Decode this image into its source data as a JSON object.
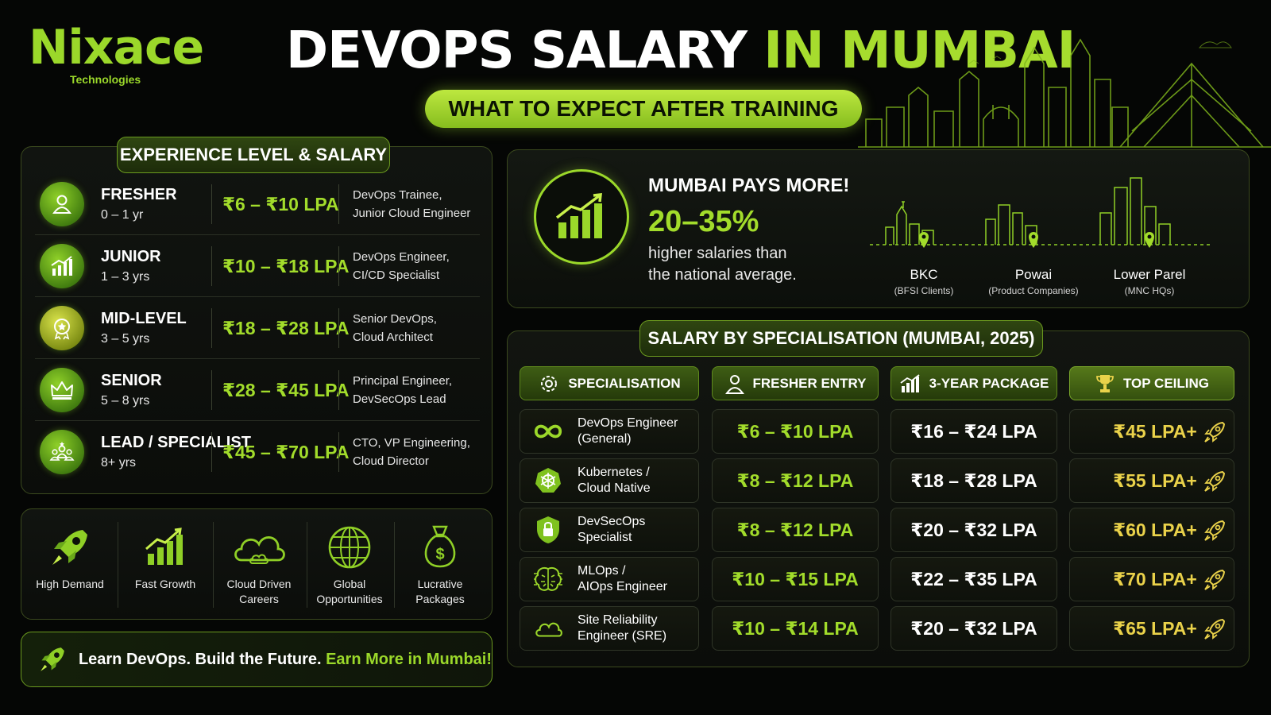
{
  "brand": {
    "name": "Nixace",
    "sub": "Technologies"
  },
  "title": {
    "part1": "DEVOPS SALARY",
    "part2": "IN MUMBAI",
    "subtitle": "WHAT TO EXPECT AFTER TRAINING"
  },
  "experience": {
    "heading": "EXPERIENCE LEVEL & SALARY",
    "rows": [
      {
        "level": "FRESHER",
        "years": "0 – 1 yr",
        "salary": "₹6 – ₹10 LPA",
        "role1": "DevOps Trainee,",
        "role2": "Junior Cloud Engineer",
        "icon": "user-icon"
      },
      {
        "level": "JUNIOR",
        "years": "1 – 3 yrs",
        "salary": "₹10 – ₹18 LPA",
        "role1": "DevOps Engineer,",
        "role2": "CI/CD Specialist",
        "icon": "growth-chart-icon"
      },
      {
        "level": "MID-LEVEL",
        "years": "3 – 5 yrs",
        "salary": "₹18 – ₹28 LPA",
        "role1": "Senior DevOps,",
        "role2": "Cloud Architect",
        "icon": "badge-icon"
      },
      {
        "level": "SENIOR",
        "years": "5 – 8 yrs",
        "salary": "₹28 – ₹45 LPA",
        "role1": "Principal Engineer,",
        "role2": "DevSecOps Lead",
        "icon": "crown-icon"
      },
      {
        "level": "LEAD / SPECIALIST",
        "years": "8+ yrs",
        "salary": "₹45 – ₹70 LPA",
        "role1": "CTO, VP Engineering,",
        "role2": "Cloud Director",
        "icon": "team-icon"
      }
    ]
  },
  "benefits": [
    {
      "line1": "High Demand",
      "line2": "",
      "icon": "rocket-icon"
    },
    {
      "line1": "Fast Growth",
      "line2": "",
      "icon": "growth-chart-icon"
    },
    {
      "line1": "Cloud Driven",
      "line2": "Careers",
      "icon": "cloud-icon"
    },
    {
      "line1": "Global",
      "line2": "Opportunities",
      "icon": "globe-icon"
    },
    {
      "line1": "Lucrative",
      "line2": "Packages",
      "icon": "money-bag-icon"
    }
  ],
  "footer": {
    "part1": "Learn DevOps. Build the Future. ",
    "part2": "Earn More in Mumbai!"
  },
  "mumbai": {
    "heading": "MUMBAI PAYS MORE!",
    "percent": "20–35%",
    "desc1": "higher salaries than",
    "desc2": "the national average.",
    "locations": [
      {
        "name": "BKC",
        "sub": "(BFSI Clients)"
      },
      {
        "name": "Powai",
        "sub": "(Product Companies)"
      },
      {
        "name": "Lower Parel",
        "sub": "(MNC HQs)"
      }
    ]
  },
  "specialisation": {
    "heading": "SALARY BY SPECIALISATION (MUMBAI, 2025)",
    "columns": [
      "SPECIALISATION",
      "FRESHER ENTRY",
      "3-YEAR PACKAGE",
      "TOP CEILING"
    ],
    "rows": [
      {
        "name1": "DevOps Engineer",
        "name2": "(General)",
        "fresher": "₹6 – ₹10 LPA",
        "three": "₹16 – ₹24 LPA",
        "top": "₹45 LPA+",
        "icon": "infinity-icon"
      },
      {
        "name1": "Kubernetes /",
        "name2": "Cloud Native",
        "fresher": "₹8 – ₹12 LPA",
        "three": "₹18 – ₹28 LPA",
        "top": "₹55 LPA+",
        "icon": "helm-wheel-icon"
      },
      {
        "name1": "DevSecOps",
        "name2": "Specialist",
        "fresher": "₹8 – ₹12 LPA",
        "three": "₹20 – ₹32 LPA",
        "top": "₹60 LPA+",
        "icon": "shield-lock-icon"
      },
      {
        "name1": "MLOps /",
        "name2": "AIOps Engineer",
        "fresher": "₹10 – ₹15 LPA",
        "three": "₹22 – ₹35 LPA",
        "top": "₹70 LPA+",
        "icon": "brain-icon"
      },
      {
        "name1": "Site Reliability",
        "name2": "Engineer (SRE)",
        "fresher": "₹10 – ₹14 LPA",
        "three": "₹20 – ₹32 LPA",
        "top": "₹65 LPA+",
        "icon": "cloud-icon"
      }
    ]
  },
  "colors": {
    "accent": "#9bd82a",
    "gold": "#ead24a",
    "background": "#050605"
  }
}
